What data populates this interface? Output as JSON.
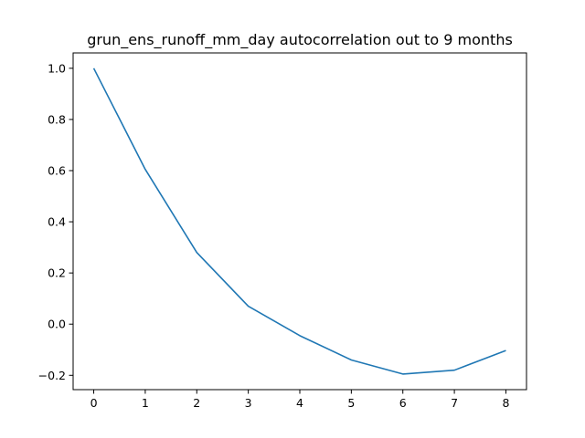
{
  "chart_data": {
    "type": "line",
    "title": "grun_ens_runoff_mm_day autocorrelation out to 9 months",
    "xlabel": "",
    "ylabel": "",
    "x": [
      0,
      1,
      2,
      3,
      4,
      5,
      6,
      7,
      8
    ],
    "series": [
      {
        "values": [
          1.0,
          0.605,
          0.28,
          0.07,
          -0.045,
          -0.14,
          -0.195,
          -0.18,
          -0.103
        ],
        "color": "#1f77b4"
      }
    ],
    "xticks": [
      "0",
      "1",
      "2",
      "3",
      "4",
      "5",
      "6",
      "7",
      "8"
    ],
    "yticks": [
      1.0,
      0.8,
      0.6,
      0.4,
      0.2,
      0.0,
      -0.2
    ],
    "ytick_labels": [
      "1.0",
      "0.8",
      "0.6",
      "0.4",
      "0.2",
      "0.0",
      "−0.2"
    ],
    "xlim": [
      -0.4,
      8.4
    ],
    "ylim": [
      -0.256,
      1.06
    ],
    "grid": false,
    "legend": "none"
  }
}
